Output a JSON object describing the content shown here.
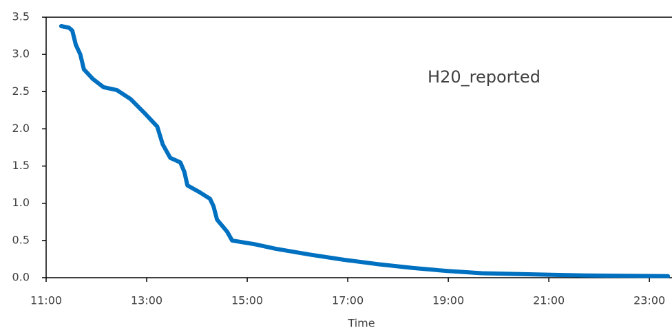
{
  "chart_data": {
    "type": "line",
    "x_label": "Time",
    "x": [
      11.3,
      11.45,
      11.52,
      11.59,
      11.68,
      11.75,
      11.93,
      12.14,
      12.41,
      12.68,
      12.96,
      13.21,
      13.32,
      13.47,
      13.67,
      13.75,
      13.81,
      14.05,
      14.26,
      14.33,
      14.4,
      14.6,
      14.7,
      15.15,
      15.56,
      16.25,
      16.93,
      17.62,
      18.3,
      18.99,
      19.67,
      20.36,
      21.04,
      21.73,
      23.37
    ],
    "series": [
      {
        "name": "H20_reported",
        "color": "#0070c0",
        "values": [
          3.38,
          3.36,
          3.32,
          3.13,
          3.0,
          2.8,
          2.67,
          2.56,
          2.52,
          2.4,
          2.21,
          2.03,
          1.79,
          1.61,
          1.55,
          1.42,
          1.24,
          1.15,
          1.06,
          0.96,
          0.78,
          0.62,
          0.5,
          0.45,
          0.39,
          0.31,
          0.24,
          0.18,
          0.13,
          0.09,
          0.06,
          0.05,
          0.04,
          0.03,
          0.02
        ]
      }
    ],
    "xlim": [
      11,
      23.45
    ],
    "xticks": [
      {
        "value": 11,
        "label": "11:00"
      },
      {
        "value": 13,
        "label": "13:00"
      },
      {
        "value": 15,
        "label": "15:00"
      },
      {
        "value": 17,
        "label": "17:00"
      },
      {
        "value": 19,
        "label": "19:00"
      },
      {
        "value": 21,
        "label": "21:00"
      },
      {
        "value": 23,
        "label": "23:00"
      }
    ],
    "ylim": [
      0,
      3.5
    ],
    "yticks": [
      {
        "value": 0,
        "label": "0.0"
      },
      0.5,
      {
        "value": 1,
        "label": "1.0"
      },
      1.5,
      {
        "value": 2,
        "label": "2.0"
      },
      2.5,
      {
        "value": 3,
        "label": "3.0"
      },
      3.5
    ],
    "grid": false
  }
}
